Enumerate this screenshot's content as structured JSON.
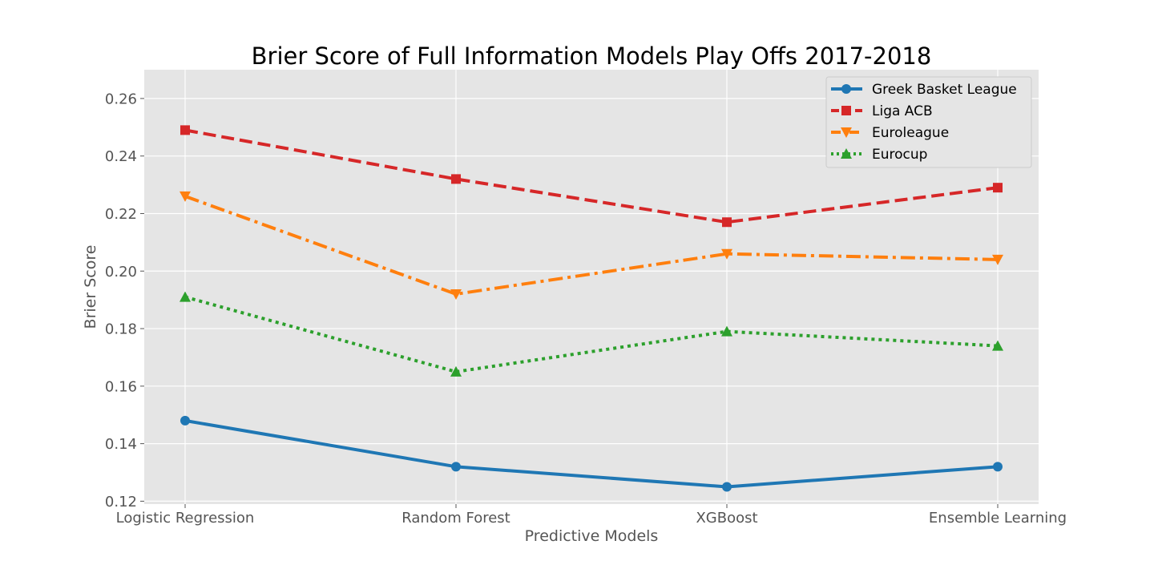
{
  "chart_data": {
    "type": "line",
    "title": "Brier Score of Full Information Models Play Offs 2017-2018",
    "xlabel": "Predictive Models",
    "ylabel": "Brier Score",
    "categories": [
      "Logistic Regression",
      "Random Forest",
      "XGBoost",
      "Ensemble Learning"
    ],
    "ylim": [
      0.119,
      0.27
    ],
    "yticks": [
      0.12,
      0.14,
      0.16,
      0.18,
      0.2,
      0.22,
      0.24,
      0.26
    ],
    "ytick_labels": [
      "0.12",
      "0.14",
      "0.16",
      "0.18",
      "0.20",
      "0.22",
      "0.24",
      "0.26"
    ],
    "grid": true,
    "legend_position": "top-right",
    "series": [
      {
        "name": "Greek Basket League",
        "values": [
          0.148,
          0.132,
          0.125,
          0.132
        ],
        "color": "#1f77b4",
        "linestyle": "solid",
        "marker": "circle"
      },
      {
        "name": "Liga ACB",
        "values": [
          0.249,
          0.232,
          0.217,
          0.229
        ],
        "color": "#d62728",
        "linestyle": "dashed",
        "marker": "square"
      },
      {
        "name": "Euroleague",
        "values": [
          0.226,
          0.192,
          0.206,
          0.204
        ],
        "color": "#ff7f0e",
        "linestyle": "dashdot",
        "marker": "triangle-down"
      },
      {
        "name": "Eurocup",
        "values": [
          0.191,
          0.165,
          0.179,
          0.174
        ],
        "color": "#2ca02c",
        "linestyle": "dotted",
        "marker": "triangle-up"
      }
    ]
  }
}
